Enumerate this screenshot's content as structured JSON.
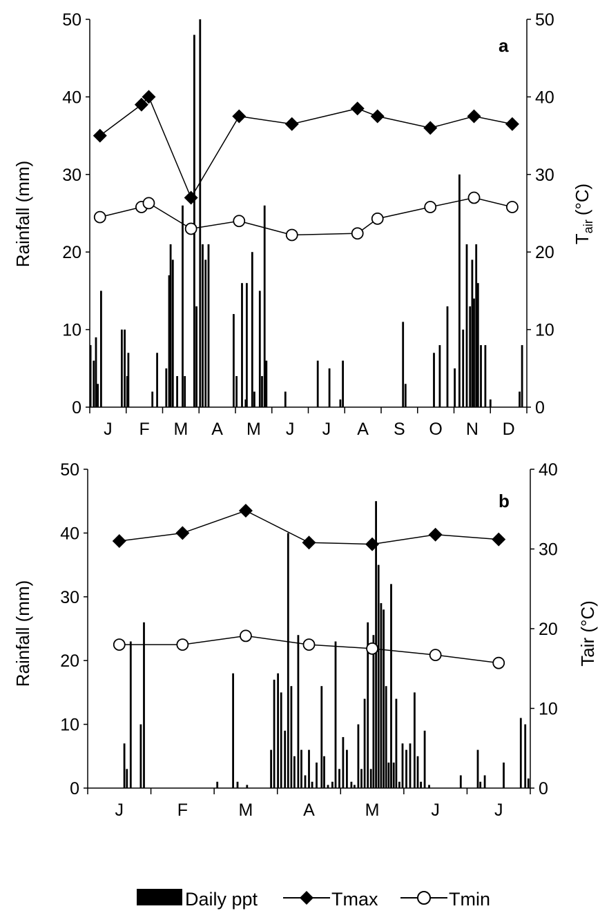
{
  "chart_data": [
    {
      "panel": "a",
      "type": "bar",
      "ylabel_left": "Rainfall (mm)",
      "ylabel_right_main": "T",
      "ylabel_right_sub": "air",
      "ylabel_right_unit": "(°C)",
      "ylim_left": [
        0,
        50
      ],
      "ylim_right": [
        0,
        50
      ],
      "yticks_left": [
        0,
        10,
        20,
        30,
        40,
        50
      ],
      "yticks_right": [
        0,
        10,
        20,
        30,
        40,
        50
      ],
      "xlim": [
        0,
        12
      ],
      "month_labels": [
        "J",
        "F",
        "M",
        "A",
        "M",
        "J",
        "J",
        "A",
        "S",
        "O",
        "N",
        "D"
      ],
      "rainfall": {
        "name": "Daily ppt",
        "x": [
          0.02,
          0.11,
          0.17,
          0.22,
          0.31,
          0.43,
          0.88,
          0.96,
          1.03,
          1.06,
          1.14,
          1.72,
          1.85,
          2.1,
          2.18,
          2.22,
          2.28,
          2.4,
          2.55,
          2.61,
          2.87,
          2.93,
          3.03,
          3.1,
          3.18,
          3.26,
          3.37,
          3.42,
          3.95,
          4.03,
          4.18,
          4.28,
          4.31,
          4.46,
          4.52,
          4.67,
          4.73,
          4.8,
          4.85,
          4.92,
          5.37,
          6.26,
          6.58,
          6.88,
          6.95,
          7.02,
          8.6,
          8.67,
          9.45,
          9.61,
          9.82,
          10.02,
          10.15,
          10.25,
          10.35,
          10.44,
          10.5,
          10.55,
          10.61,
          10.66,
          10.74,
          10.86,
          11.0,
          11.18,
          11.8,
          11.87
        ],
        "values": [
          8,
          6,
          9,
          3,
          15,
          0,
          10,
          10,
          4,
          7,
          0,
          2,
          7,
          5,
          17,
          21,
          19,
          4,
          26,
          4,
          48,
          13,
          50,
          21,
          19,
          21,
          0,
          0,
          12,
          4,
          16,
          1,
          16,
          20,
          2,
          15,
          4,
          26,
          6,
          0,
          2,
          6,
          5,
          1,
          6,
          0,
          11,
          3,
          7,
          8,
          13,
          5,
          30,
          10,
          21,
          13,
          19,
          14,
          21,
          16,
          8,
          8,
          1,
          0,
          2,
          8
        ]
      },
      "tmax": {
        "name": "Tmax",
        "x": [
          0.28,
          1.42,
          1.62,
          2.78,
          4.1,
          5.55,
          7.35,
          7.9,
          9.35,
          10.55,
          11.6
        ],
        "values": [
          35,
          39,
          40,
          27,
          37.5,
          36.5,
          38.5,
          37.5,
          36,
          37.5,
          36.5
        ]
      },
      "tmin": {
        "name": "Tmin",
        "x": [
          0.28,
          1.42,
          1.62,
          2.78,
          4.1,
          5.55,
          7.35,
          7.9,
          9.35,
          10.55,
          11.6
        ],
        "values": [
          24.5,
          25.8,
          26.3,
          23,
          24,
          22.2,
          22.4,
          24.3,
          25.8,
          27,
          25.8
        ]
      }
    },
    {
      "panel": "b",
      "type": "bar",
      "ylabel_left": "Rainfall (mm)",
      "ylabel_right": "Tair (°C)",
      "ylim_left": [
        0,
        50
      ],
      "ylim_right": [
        0,
        40
      ],
      "yticks_left": [
        0,
        10,
        20,
        30,
        40,
        50
      ],
      "yticks_right": [
        0,
        10,
        20,
        30,
        40
      ],
      "xlim": [
        0,
        7
      ],
      "month_labels": [
        "J",
        "F",
        "M",
        "A",
        "M",
        "J",
        "J"
      ],
      "rainfall": {
        "name": "Daily ppt",
        "x": [
          0.58,
          0.62,
          0.68,
          0.84,
          0.89,
          2.05,
          2.3,
          2.37,
          2.52,
          2.9,
          2.95,
          3.01,
          3.06,
          3.12,
          3.17,
          3.22,
          3.27,
          3.33,
          3.38,
          3.44,
          3.5,
          3.55,
          3.62,
          3.7,
          3.74,
          3.8,
          3.87,
          3.92,
          3.98,
          4.04,
          4.1,
          4.17,
          4.22,
          4.28,
          4.33,
          4.38,
          4.43,
          4.48,
          4.52,
          4.56,
          4.6,
          4.64,
          4.68,
          4.72,
          4.76,
          4.8,
          4.84,
          4.88,
          4.93,
          4.98,
          5.04,
          5.1,
          5.17,
          5.22,
          5.27,
          5.33,
          5.4,
          5.9,
          6.17,
          6.21,
          6.28,
          6.58,
          6.85,
          6.92,
          6.97
        ],
        "values": [
          7,
          3,
          23,
          10,
          26,
          1,
          18,
          1,
          0.5,
          6,
          17,
          18,
          15,
          9,
          40,
          16,
          5,
          24,
          6,
          2,
          6,
          1,
          4,
          16,
          5,
          0.5,
          1,
          23,
          3,
          8,
          6,
          1,
          0.5,
          10,
          3,
          14,
          26,
          3,
          24,
          45,
          35,
          29,
          28,
          16,
          4,
          32,
          4,
          14,
          1,
          7,
          6,
          7,
          15,
          5,
          1,
          9,
          0.5,
          2,
          6,
          1,
          2,
          4,
          11,
          10,
          1.5
        ],
        "note_cluster": "additional small daily values 0–5 mm during Apr–May"
      },
      "tmax": {
        "name": "Tmax",
        "x": [
          0.5,
          1.5,
          2.5,
          3.5,
          4.5,
          5.5,
          6.5
        ],
        "values": [
          31,
          32,
          34.8,
          30.8,
          30.6,
          31.8,
          31.2
        ]
      },
      "tmin": {
        "name": "Tmin",
        "x": [
          0.5,
          1.5,
          2.5,
          3.5,
          4.5,
          5.5,
          6.5
        ],
        "values": [
          18,
          18,
          19.1,
          18,
          17.5,
          16.7,
          15.7
        ]
      }
    }
  ],
  "legend": {
    "items": [
      {
        "label": "Daily ppt",
        "symbol": "bar"
      },
      {
        "label": "Tmax",
        "symbol": "line-diamond"
      },
      {
        "label": "Tmin",
        "symbol": "line-circle"
      }
    ]
  },
  "colors": {
    "ink": "#000000",
    "background": "#ffffff"
  }
}
